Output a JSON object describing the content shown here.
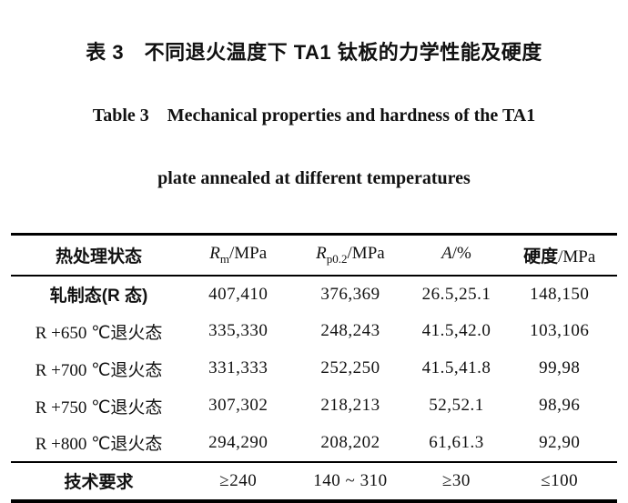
{
  "colors": {
    "ink": "#111111",
    "background": "#ffffff",
    "rule": "#000000"
  },
  "caption": {
    "zh": "表 3　不同退火温度下 TA1 钛板的力学性能及硬度",
    "en_line1": "Table 3　Mechanical properties and hardness of the TA1",
    "en_line2": "plate annealed at different temperatures"
  },
  "table": {
    "headers": [
      {
        "label": "热处理状态"
      },
      {
        "symbol": "R",
        "sub": "m",
        "unit": "/MPa"
      },
      {
        "symbol": "R",
        "sub": "p0.2",
        "unit": "/MPa"
      },
      {
        "symbol": "A",
        "sub": "",
        "unit": "/%"
      },
      {
        "label": "硬度",
        "unit": "/MPa"
      }
    ],
    "rows": [
      {
        "label": "轧制态(R 态)",
        "values": [
          "407,410",
          "376,369",
          "26.5,25.1",
          "148,150"
        ]
      },
      {
        "label": "R +650 ℃退火态",
        "values": [
          "335,330",
          "248,243",
          "41.5,42.0",
          "103,106"
        ]
      },
      {
        "label": "R +700 ℃退火态",
        "values": [
          "331,333",
          "252,250",
          "41.5,41.8",
          "99,98"
        ]
      },
      {
        "label": "R +750 ℃退火态",
        "values": [
          "307,302",
          "218,213",
          "52,52.1",
          "98,96"
        ]
      },
      {
        "label": "R +800 ℃退火态",
        "values": [
          "294,290",
          "208,202",
          "61,61.3",
          "92,90"
        ]
      },
      {
        "label": "技术要求",
        "values": [
          "≥240",
          "140 ~ 310",
          "≥30",
          "≤100"
        ]
      }
    ]
  }
}
